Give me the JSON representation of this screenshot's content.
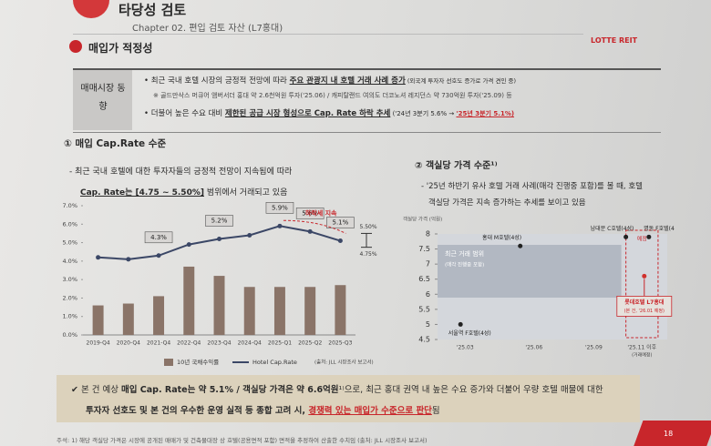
{
  "header": {
    "title": "타당성 검토",
    "chapter": "Chapter 02. 편입 검토 자산 (L7홍대)",
    "logo": "LOTTE REIT"
  },
  "section": {
    "title": "매입가 적정성"
  },
  "table": {
    "label": "매매시장 동향",
    "bullet1": [
      "최근 국내 호텔 시장의 긍정적 전망에 따라 ",
      "주요 관광지 내 호텔 거래 사례 증가",
      " (외국계 투자자 선호도 증가로 가격 견인 중)"
    ],
    "note": "※ 골드만삭스 머큐어 앰버서더 홍대 약 2.6천억원 투자('25.06) / 캐피탈랜드 여의도 더코노셔 레지던스 약 730억원 투자('25.09) 등",
    "bullet2": [
      "더불어 높은 수요 대비 ",
      "제한된 공급 시장 형성으로 Cap. Rate 하락 추세",
      " ('24년 3분기 5.6% → ",
      "'25년 3분기 5.1%)"
    ]
  },
  "chart1": {
    "type": "bar-line",
    "heading": "① 매입 Cap.Rate 수준",
    "desc": [
      "- 최근 국내 호텔에 대한 투자자들의 긍정적 전망이 지속됨에 따라",
      "Cap. Rate는 [4.75 ~ 5.50%]",
      " 범위에서 거래되고 있음"
    ],
    "categories": [
      "2019-Q4",
      "2020-Q4",
      "2021-Q4",
      "2022-Q4",
      "2023-Q4",
      "2024-Q4",
      "2025-Q1",
      "2025-Q2",
      "2025-Q3"
    ],
    "series": [
      {
        "name": "10년 국채수익률",
        "kind": "bar",
        "color": "#8a7468",
        "values": [
          1.6,
          1.7,
          2.1,
          3.7,
          3.2,
          2.6,
          2.6,
          2.6,
          2.7
        ]
      },
      {
        "name": "Hotel Cap.Rate",
        "kind": "line",
        "color": "#3b4766",
        "values": [
          4.2,
          4.1,
          4.3,
          4.9,
          5.2,
          5.4,
          5.9,
          5.6,
          5.1
        ],
        "value_labels": [
          null,
          null,
          "4.3%",
          null,
          "5.2%",
          null,
          "5.9%",
          "5.6%",
          "5.1%"
        ]
      }
    ],
    "ylim": [
      0,
      7
    ],
    "yticks": [
      {
        "value": 0,
        "label": "0.0%"
      },
      {
        "value": 1,
        "label": "1.0%"
      },
      {
        "value": 2,
        "label": "2.0%"
      },
      {
        "value": 3,
        "label": "3.0%"
      },
      {
        "value": 4,
        "label": "4.0%"
      },
      {
        "value": 5,
        "label": "5.0%"
      },
      {
        "value": 6,
        "label": "6.0%"
      },
      {
        "value": 7,
        "label": "7.0%"
      }
    ],
    "annotation": "하락세 지속",
    "range": [
      {
        "value": 5.5,
        "label": "5.50%"
      },
      {
        "value": 4.75,
        "label": "4.75%"
      }
    ],
    "source": "(출처: JLL 시장조사 보고서)"
  },
  "chart2": {
    "type": "scatter",
    "heading": "② 객실당 가격 수준¹⁾",
    "desc": [
      "- '25년 하반기 유사 호텔 거래 사례(매각 진행중 포함)를 볼 때, 호텔",
      "객실당 가격은 지속 증가하는 추세를 보이고 있음"
    ],
    "y_title": "객실당 가격 (억원)",
    "ylim": [
      4.5,
      8.0
    ],
    "yticks": [
      4.5,
      5,
      5.5,
      6,
      6.5,
      7,
      7.5,
      8
    ],
    "categories": [
      "'25.03",
      "'25.06",
      "'25.09",
      "'25.11 이후"
    ],
    "future_note": "(거래예정)",
    "band_label": [
      "최근 거래 범위",
      "(매각 진행중 포함)"
    ],
    "future_label": "예정",
    "points": [
      {
        "name": "서울역 F호텔(4성)",
        "value": 5.0,
        "color": "#222222"
      },
      {
        "name": "홍대 M호텔(4성)",
        "value": 7.6,
        "color": "#222222"
      },
      {
        "name": "남대문 C호텔(4성)",
        "value": 7.9,
        "color": "#222222"
      },
      {
        "name": "명동 F호텔(4성)",
        "value": 7.9,
        "color": "#222222"
      },
      {
        "name": "롯데호텔 L7홍대",
        "sub": "(본 건, '26.01 예정)",
        "value": 6.6,
        "color": "#d0312d"
      }
    ]
  },
  "conclusion": [
    "✔ 본 건 예상 ",
    "매입 Cap. Rate는 약 5.1% / 객실당 가격은 약 6.6억원",
    "¹⁾으로, 최근 홍대 권역 내 높은 수요 증가와 더불어 우량 호텔 매물에 대한",
    "투자자 선호도 및 본 건의 우수한 운영 실적 등 종합 고려 시, ",
    "경쟁력 있는 매입가 수준으로 판단",
    "됨"
  ],
  "footnote": "주석: 1) 해당 객실당 가격은 시장에 공개된 매매가 및 건축물대장 상 호텔(공용면적 포함) 면적을 추정하여 산출한 수치임 (출처: JLL 시장조사 보고서)",
  "page": "18"
}
